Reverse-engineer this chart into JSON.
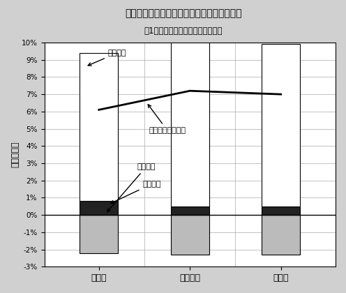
{
  "title_line1": "図２　消費者価格変化率の要因別寄与度分解",
  "title_line2": "（1９９０～９５年の価格変化率）",
  "categories": [
    "食料品",
    "非食料品",
    "総　合"
  ],
  "domestic_factor": [
    8.6,
    9.5,
    9.4
  ],
  "forex_factor": [
    0.8,
    0.5,
    0.5
  ],
  "negative_bar": [
    -2.2,
    -2.3,
    -2.3
  ],
  "cpi_line": [
    6.1,
    7.2,
    7.0
  ],
  "ylim": [
    -3,
    10
  ],
  "yticks": [
    -3,
    -2,
    -1,
    0,
    1,
    2,
    3,
    4,
    5,
    6,
    7,
    8,
    9,
    10
  ],
  "ytick_labels": [
    "-3%",
    "-2%",
    "-1%",
    "0%",
    "1%",
    "2%",
    "3%",
    "4%",
    "5%",
    "6%",
    "7%",
    "8%",
    "9%",
    "10%"
  ],
  "ylabel": "価格変化率",
  "bar_width": 0.42,
  "domestic_color": "#ffffff",
  "domestic_edge": "#000000",
  "forex_color": "#222222",
  "negative_color": "#bbbbbb",
  "negative_edge": "#000000",
  "line_color": "#000000",
  "background_color": "#ffffff",
  "figure_bg": "#d0d0d0",
  "ann_domestic_text": "国内要因",
  "ann_cpi_text": "消費者価格変化率",
  "ann_overseas_text": "海外要因",
  "ann_forex_text": "為替要因"
}
